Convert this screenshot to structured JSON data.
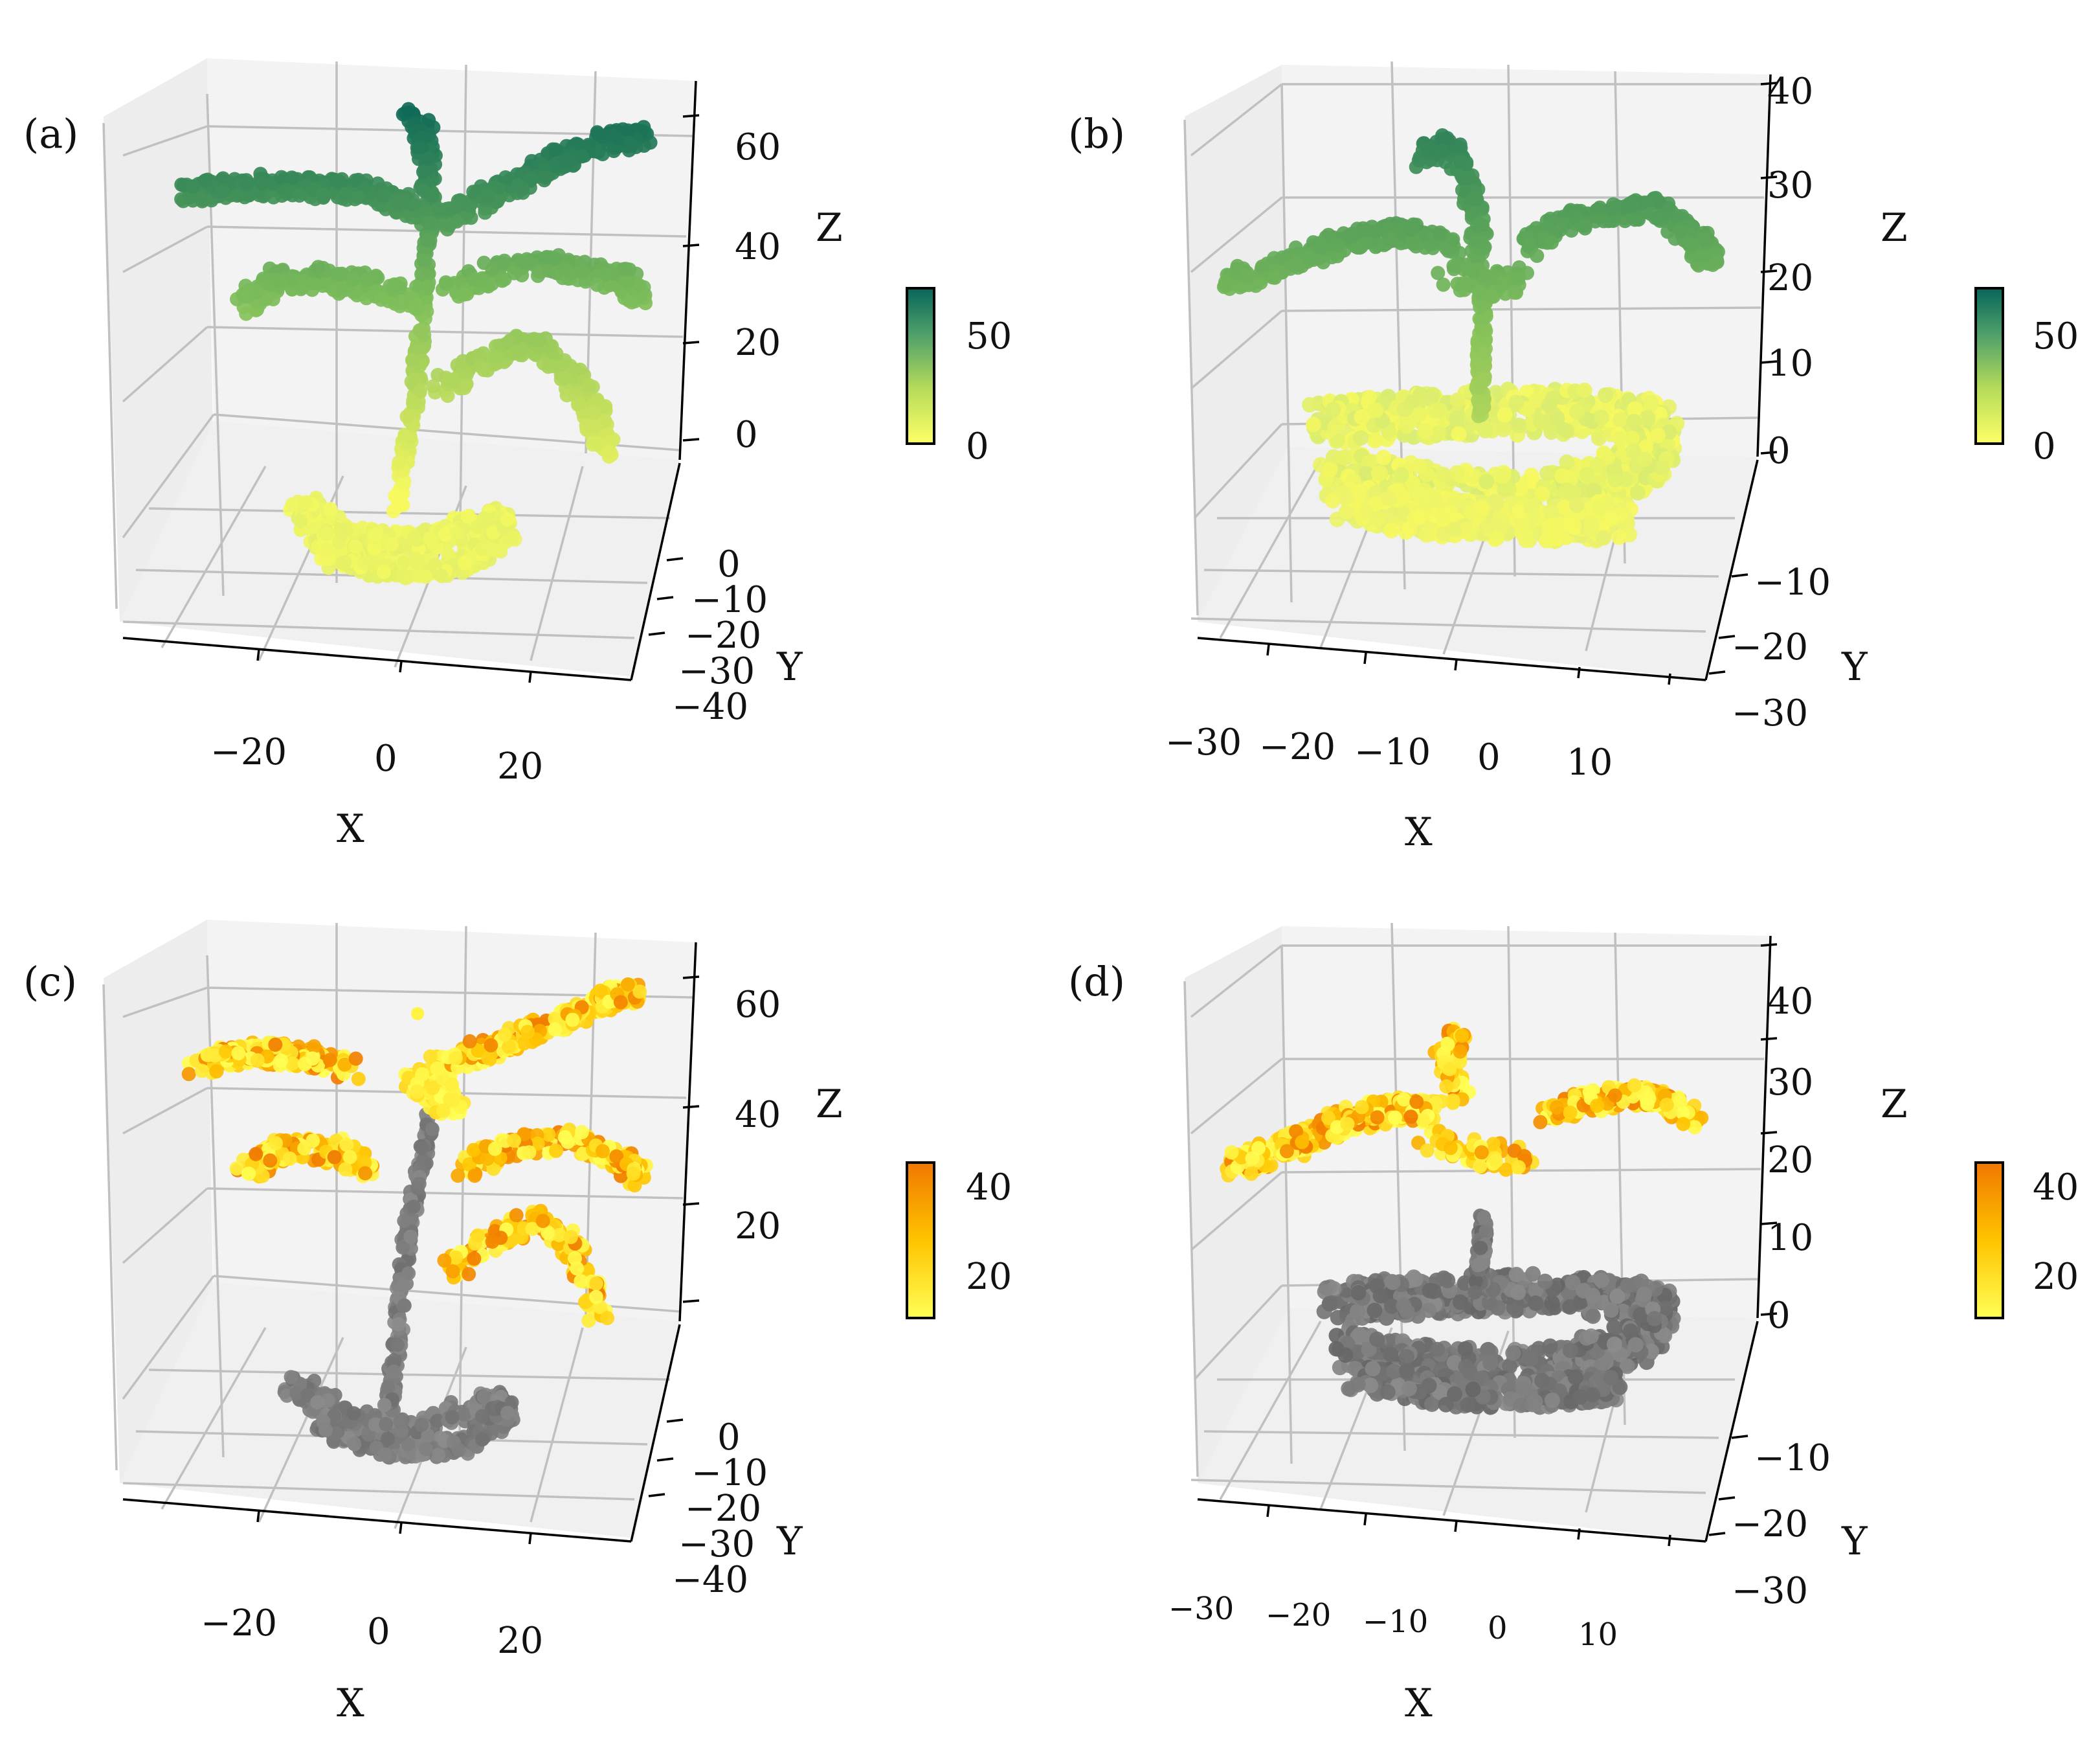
{
  "chart_data": [
    {
      "type": "scatter3d",
      "panel": "(a)",
      "description_axes": {
        "xlabel": "X",
        "ylabel": "Y",
        "zlabel": "Z"
      },
      "x_ticks": [
        "−20",
        "0",
        "20"
      ],
      "y_ticks": [
        "0",
        "−10",
        "−20",
        "−30",
        "−40"
      ],
      "z_ticks": [
        "0",
        "20",
        "40",
        "60"
      ],
      "xlim": [
        -35,
        35
      ],
      "ylim": [
        -40,
        10
      ],
      "zlim": [
        -5,
        70
      ],
      "colorbar": {
        "cmap": "yellow-green",
        "ticks": [
          "0",
          "50"
        ],
        "range": [
          0,
          65
        ]
      },
      "point_groups": [
        {
          "name": "stem",
          "x": [
            -2,
            0
          ],
          "y": [
            0,
            0
          ],
          "z": [
            -12,
            63
          ]
        },
        {
          "name": "base ring",
          "x": [
            -25,
            28
          ],
          "y": [
            -5,
            5
          ],
          "z": [
            -20,
            -14
          ]
        },
        {
          "name": "upper-left leaf",
          "x": [
            -33,
            -3
          ],
          "z": [
            54,
            62
          ]
        },
        {
          "name": "upper-right leaf",
          "x": [
            3,
            33
          ],
          "z": [
            52,
            68
          ]
        },
        {
          "name": "middle-left leaf",
          "x": [
            -30,
            -3
          ],
          "z": [
            30,
            36
          ]
        },
        {
          "name": "middle-right leaf",
          "x": [
            5,
            33
          ],
          "z": [
            32,
            42
          ]
        },
        {
          "name": "lower-right leaf",
          "x": [
            5,
            30
          ],
          "z": [
            10,
            22
          ]
        }
      ]
    },
    {
      "type": "scatter3d",
      "panel": "(b)",
      "description_axes": {
        "xlabel": "X",
        "ylabel": "Y",
        "zlabel": "Z"
      },
      "x_ticks": [
        "−30",
        "−20",
        "−10",
        "0",
        "10"
      ],
      "y_ticks": [
        "−10",
        "−20",
        "−30"
      ],
      "z_ticks": [
        "0",
        "10",
        "20",
        "30",
        "40"
      ],
      "xlim": [
        -35,
        15
      ],
      "ylim": [
        -30,
        5
      ],
      "zlim": [
        0,
        40
      ],
      "colorbar": {
        "cmap": "yellow-green",
        "ticks": [
          "0",
          "50"
        ],
        "range": [
          0,
          65
        ]
      },
      "point_groups": [
        {
          "name": "stem",
          "x": [
            -10,
            -8
          ],
          "z": [
            2,
            36
          ]
        },
        {
          "name": "ground leaves",
          "x": [
            -25,
            12
          ],
          "y": [
            -25,
            0
          ],
          "z": [
            0,
            6
          ]
        },
        {
          "name": "left leaf",
          "x": [
            -33,
            -10
          ],
          "z": [
            18,
            26
          ]
        },
        {
          "name": "right leaf",
          "x": [
            -5,
            12
          ],
          "z": [
            18,
            28
          ]
        }
      ]
    },
    {
      "type": "scatter3d",
      "panel": "(c)",
      "description_axes": {
        "xlabel": "X",
        "ylabel": "Y",
        "zlabel": "Z"
      },
      "x_ticks": [
        "−20",
        "0",
        "20"
      ],
      "y_ticks": [
        "0",
        "−10",
        "−20",
        "−30",
        "−40"
      ],
      "z_ticks": [
        "20",
        "40",
        "60"
      ],
      "xlim": [
        -35,
        35
      ],
      "ylim": [
        -40,
        10
      ],
      "zlim": [
        -5,
        70
      ],
      "colorbar": {
        "cmap": "yellow-orange",
        "ticks": [
          "20",
          "40"
        ],
        "range": [
          10,
          45
        ]
      },
      "point_groups": [
        {
          "name": "stem and base (gray, unclassified)",
          "color": "#808080"
        },
        {
          "name": "leaves (colored by value)",
          "value_range": [
            10,
            45
          ]
        }
      ]
    },
    {
      "type": "scatter3d",
      "panel": "(d)",
      "description_axes": {
        "xlabel": "X",
        "ylabel": "Y",
        "zlabel": "Z"
      },
      "x_ticks": [
        "−30",
        "−20",
        "−10",
        "0",
        "10"
      ],
      "y_ticks": [
        "−10",
        "−20",
        "−30"
      ],
      "z_ticks": [
        "0",
        "10",
        "20",
        "30",
        "40"
      ],
      "xlim": [
        -35,
        15
      ],
      "ylim": [
        -30,
        5
      ],
      "zlim": [
        0,
        45
      ],
      "colorbar": {
        "cmap": "yellow-orange",
        "ticks": [
          "20",
          "40"
        ],
        "range": [
          10,
          45
        ]
      },
      "point_groups": [
        {
          "name": "stem and ground leaves (gray, unclassified)",
          "color": "#808080"
        },
        {
          "name": "upper leaves (colored by value)",
          "value_range": [
            10,
            45
          ]
        }
      ]
    }
  ],
  "colors": {
    "grid": "#c0c0c0",
    "pane": "#ededed",
    "gray_points": "#7a7a7a",
    "green_dark": "#0f6b5a",
    "green_mid": "#5ea85a",
    "yellow": "#f3f35a",
    "orange": "#f08a00"
  }
}
